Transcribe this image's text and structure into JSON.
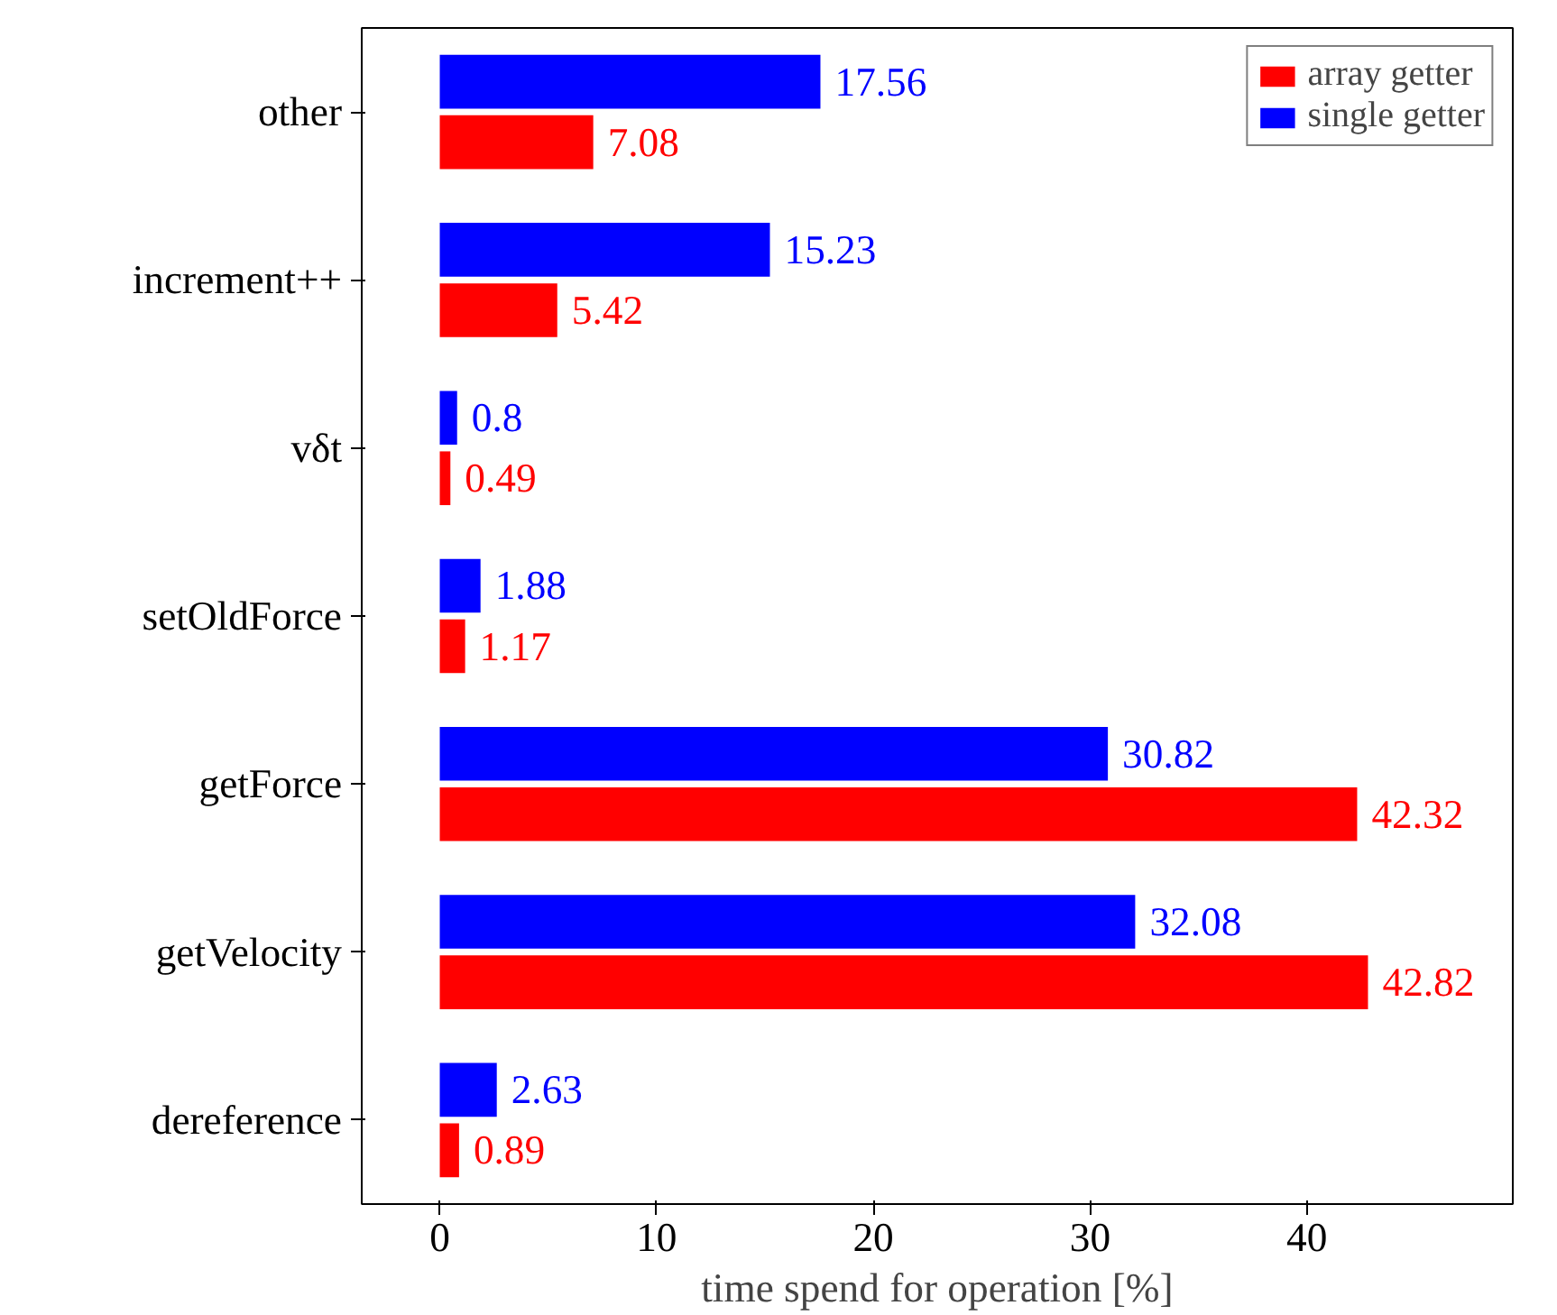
{
  "chart_data": {
    "type": "bar",
    "orientation": "horizontal",
    "xlabel": "time spend for operation [%]",
    "categories": [
      "other",
      "increment++",
      "vδt",
      "setOldForce",
      "getForce",
      "getVelocity",
      "dereference"
    ],
    "series": [
      {
        "name": "array getter",
        "color": "#ff0000",
        "values": [
          7.08,
          5.42,
          0.49,
          1.17,
          42.32,
          42.82,
          0.89
        ]
      },
      {
        "name": "single getter",
        "color": "#0000ff",
        "values": [
          17.56,
          15.23,
          0.8,
          1.88,
          30.82,
          32.08,
          2.63
        ]
      }
    ],
    "xlim": [
      -3.6,
      49.5
    ],
    "xticks": [
      0,
      10,
      20,
      30,
      40
    ],
    "data_labels": true,
    "legend": "top right",
    "grid": false
  }
}
